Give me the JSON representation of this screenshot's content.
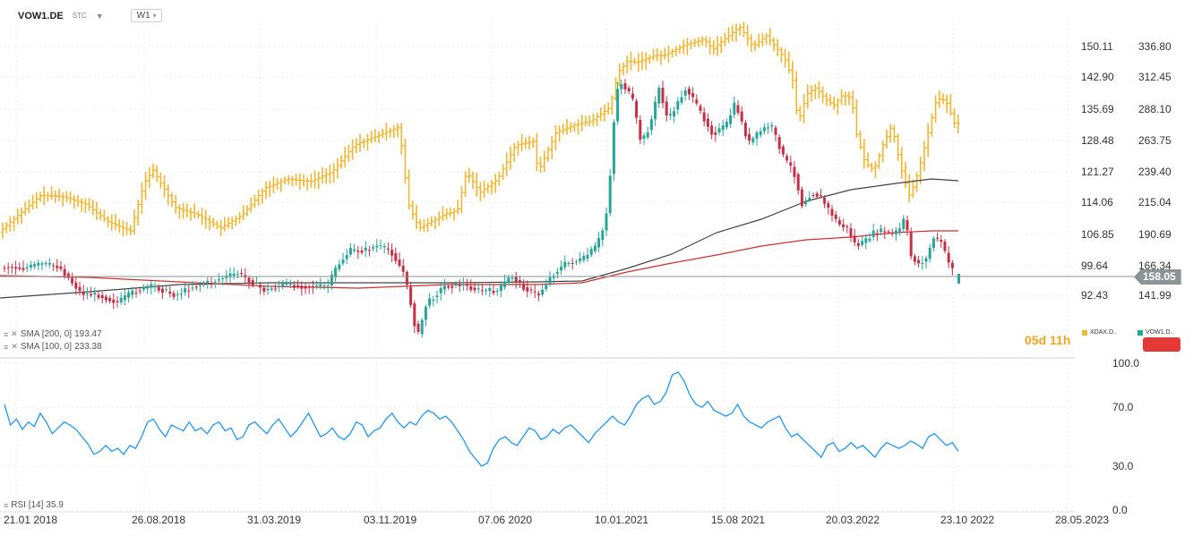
{
  "header": {
    "symbol": "VOW1.DE",
    "exchange": "STC",
    "timeframe": "W1"
  },
  "indicators": [
    {
      "label": "SMA [200, 0]",
      "value": "193.47",
      "color": "#444444"
    },
    {
      "label": "SMA [100, 0]",
      "value": "233.38",
      "color": "#d32f2f"
    },
    {
      "label": "RSI [14]",
      "value": "35.9",
      "color": "#2196f3"
    }
  ],
  "countdown": "05d 11h",
  "legend": [
    {
      "label": "XDAX.D..",
      "color": "#f2b632"
    },
    {
      "label": "VOW1.D..",
      "color": "#26a69a"
    }
  ],
  "price_badge": "158.05",
  "chart_data": [
    {
      "type": "candlestick",
      "series": [
        {
          "name": "VOW1.DE",
          "color_up": "#26a69a",
          "color_down": "#c62f45"
        },
        {
          "name": "XDAX",
          "color": "#f2b632"
        },
        {
          "name": "SMA [200, 0]",
          "color": "#444444"
        },
        {
          "name": "SMA [100, 0]",
          "color": "#d32f2f"
        }
      ],
      "x_labels": [
        "21.01 2018",
        "26.08.2018",
        "31.03.2019",
        "03.11.2019",
        "07.06 2020",
        "10.01.2021",
        "15.08 2021",
        "20.03.2022",
        "23.10 2022",
        "28.05.2023"
      ],
      "y_left": [
        "150.11",
        "142.90",
        "135.69",
        "128.48",
        "121.27",
        "114.06",
        "106.85",
        "99.64",
        "92.43"
      ],
      "y_right": [
        "336.80",
        "312.45",
        "288.10",
        "263.75",
        "239.40",
        "215.04",
        "190.69",
        "166.34",
        "141.99"
      ],
      "xdax_path": [
        [
          0,
          262
        ],
        [
          25,
          240
        ],
        [
          50,
          218
        ],
        [
          75,
          220
        ],
        [
          100,
          228
        ],
        [
          125,
          248
        ],
        [
          150,
          258
        ],
        [
          165,
          205
        ],
        [
          175,
          190
        ],
        [
          200,
          232
        ],
        [
          225,
          240
        ],
        [
          250,
          255
        ],
        [
          275,
          240
        ],
        [
          300,
          210
        ],
        [
          325,
          200
        ],
        [
          350,
          203
        ],
        [
          375,
          192
        ],
        [
          400,
          162
        ],
        [
          425,
          152
        ],
        [
          450,
          142
        ],
        [
          460,
          228
        ],
        [
          472,
          255
        ],
        [
          485,
          248
        ],
        [
          500,
          240
        ],
        [
          515,
          235
        ],
        [
          525,
          192
        ],
        [
          540,
          215
        ],
        [
          560,
          200
        ],
        [
          580,
          162
        ],
        [
          600,
          158
        ],
        [
          605,
          192
        ],
        [
          625,
          148
        ],
        [
          645,
          140
        ],
        [
          665,
          135
        ],
        [
          685,
          120
        ],
        [
          695,
          80
        ],
        [
          705,
          68
        ],
        [
          715,
          70
        ],
        [
          735,
          62
        ],
        [
          745,
          62
        ],
        [
          770,
          50
        ],
        [
          790,
          44
        ],
        [
          800,
          55
        ],
        [
          815,
          42
        ],
        [
          830,
          30
        ],
        [
          845,
          52
        ],
        [
          860,
          40
        ],
        [
          880,
          65
        ],
        [
          890,
          92
        ],
        [
          895,
          138
        ],
        [
          905,
          105
        ],
        [
          915,
          98
        ],
        [
          925,
          110
        ],
        [
          935,
          118
        ],
        [
          945,
          106
        ],
        [
          955,
          110
        ],
        [
          960,
          148
        ],
        [
          970,
          182
        ],
        [
          980,
          190
        ],
        [
          990,
          162
        ],
        [
          1000,
          140
        ],
        [
          1010,
          188
        ],
        [
          1020,
          220
        ],
        [
          1030,
          190
        ],
        [
          1040,
          150
        ],
        [
          1050,
          110
        ],
        [
          1060,
          112
        ],
        [
          1070,
          138
        ]
      ],
      "vow_path": [
        [
          0,
          300
        ],
        [
          15,
          298
        ],
        [
          30,
          300
        ],
        [
          50,
          295
        ],
        [
          70,
          298
        ],
        [
          95,
          328
        ],
        [
          115,
          330
        ],
        [
          135,
          338
        ],
        [
          155,
          325
        ],
        [
          175,
          320
        ],
        [
          200,
          330
        ],
        [
          220,
          320
        ],
        [
          240,
          315
        ],
        [
          270,
          305
        ],
        [
          300,
          325
        ],
        [
          320,
          318
        ],
        [
          345,
          320
        ],
        [
          370,
          320
        ],
        [
          380,
          298
        ],
        [
          395,
          280
        ],
        [
          410,
          280
        ],
        [
          425,
          275
        ],
        [
          440,
          280
        ],
        [
          455,
          305
        ],
        [
          463,
          340
        ],
        [
          470,
          378
        ],
        [
          480,
          340
        ],
        [
          490,
          330
        ],
        [
          500,
          320
        ],
        [
          520,
          318
        ],
        [
          540,
          325
        ],
        [
          560,
          325
        ],
        [
          575,
          308
        ],
        [
          590,
          322
        ],
        [
          605,
          330
        ],
        [
          620,
          308
        ],
        [
          635,
          295
        ],
        [
          655,
          290
        ],
        [
          670,
          275
        ],
        [
          680,
          250
        ],
        [
          685,
          200
        ],
        [
          690,
          130
        ],
        [
          695,
          90
        ],
        [
          700,
          95
        ],
        [
          710,
          110
        ],
        [
          720,
          160
        ],
        [
          730,
          140
        ],
        [
          740,
          98
        ],
        [
          750,
          135
        ],
        [
          770,
          98
        ],
        [
          790,
          132
        ],
        [
          800,
          150
        ],
        [
          815,
          140
        ],
        [
          825,
          115
        ],
        [
          840,
          160
        ],
        [
          855,
          145
        ],
        [
          865,
          140
        ],
        [
          880,
          178
        ],
        [
          890,
          190
        ],
        [
          900,
          230
        ],
        [
          910,
          215
        ],
        [
          920,
          220
        ],
        [
          930,
          235
        ],
        [
          940,
          250
        ],
        [
          950,
          255
        ],
        [
          960,
          275
        ],
        [
          970,
          270
        ],
        [
          980,
          260
        ],
        [
          990,
          258
        ],
        [
          1000,
          262
        ],
        [
          1010,
          255
        ],
        [
          1015,
          240
        ],
        [
          1020,
          285
        ],
        [
          1030,
          295
        ],
        [
          1040,
          288
        ],
        [
          1045,
          265
        ],
        [
          1055,
          270
        ],
        [
          1060,
          285
        ],
        [
          1065,
          298
        ]
      ],
      "sma200_path": [
        [
          0,
          333
        ],
        [
          100,
          326
        ],
        [
          200,
          318
        ],
        [
          300,
          316
        ],
        [
          400,
          316
        ],
        [
          500,
          316
        ],
        [
          600,
          315
        ],
        [
          650,
          314
        ],
        [
          700,
          300
        ],
        [
          750,
          284
        ],
        [
          800,
          260
        ],
        [
          850,
          245
        ],
        [
          900,
          225
        ],
        [
          950,
          212
        ],
        [
          1000,
          205
        ],
        [
          1040,
          200
        ],
        [
          1070,
          202
        ]
      ],
      "sma100_path": [
        [
          0,
          308
        ],
        [
          100,
          310
        ],
        [
          200,
          315
        ],
        [
          300,
          320
        ],
        [
          400,
          322
        ],
        [
          450,
          320
        ],
        [
          500,
          318
        ],
        [
          550,
          318
        ],
        [
          600,
          318
        ],
        [
          650,
          316
        ],
        [
          700,
          304
        ],
        [
          750,
          294
        ],
        [
          800,
          285
        ],
        [
          850,
          275
        ],
        [
          900,
          268
        ],
        [
          950,
          265
        ],
        [
          1000,
          260
        ],
        [
          1040,
          258
        ],
        [
          1070,
          258
        ]
      ],
      "last_price": 158.05
    },
    {
      "type": "line",
      "series": [
        {
          "name": "RSI [14]",
          "color": "#2196f3"
        }
      ],
      "y_labels": [
        "100.0",
        "70.0",
        "30.0",
        "0.0"
      ],
      "rsi_values": [
        72,
        58,
        62,
        55,
        60,
        57,
        66,
        60,
        52,
        56,
        60,
        58,
        55,
        50,
        45,
        38,
        40,
        44,
        40,
        42,
        38,
        44,
        42,
        50,
        60,
        62,
        55,
        50,
        58,
        56,
        54,
        60,
        54,
        56,
        52,
        58,
        60,
        54,
        56,
        48,
        50,
        58,
        60,
        56,
        52,
        58,
        62,
        56,
        50,
        54,
        60,
        66,
        58,
        50,
        52,
        56,
        50,
        48,
        52,
        60,
        58,
        50,
        54,
        56,
        62,
        66,
        60,
        56,
        60,
        58,
        64,
        68,
        66,
        62,
        64,
        60,
        54,
        48,
        40,
        35,
        30,
        32,
        42,
        48,
        50,
        46,
        44,
        50,
        56,
        54,
        48,
        50,
        55,
        52,
        56,
        58,
        54,
        50,
        46,
        52,
        56,
        60,
        64,
        60,
        58,
        64,
        72,
        76,
        78,
        72,
        74,
        80,
        92,
        94,
        88,
        78,
        72,
        70,
        74,
        68,
        66,
        64,
        66,
        72,
        64,
        60,
        58,
        56,
        60,
        62,
        64,
        56,
        50,
        52,
        48,
        44,
        40,
        36,
        44,
        46,
        40,
        42,
        46,
        42,
        44,
        40,
        36,
        42,
        46,
        44,
        42,
        44,
        47,
        45,
        42,
        50,
        52,
        48,
        44,
        46,
        40
      ]
    }
  ]
}
